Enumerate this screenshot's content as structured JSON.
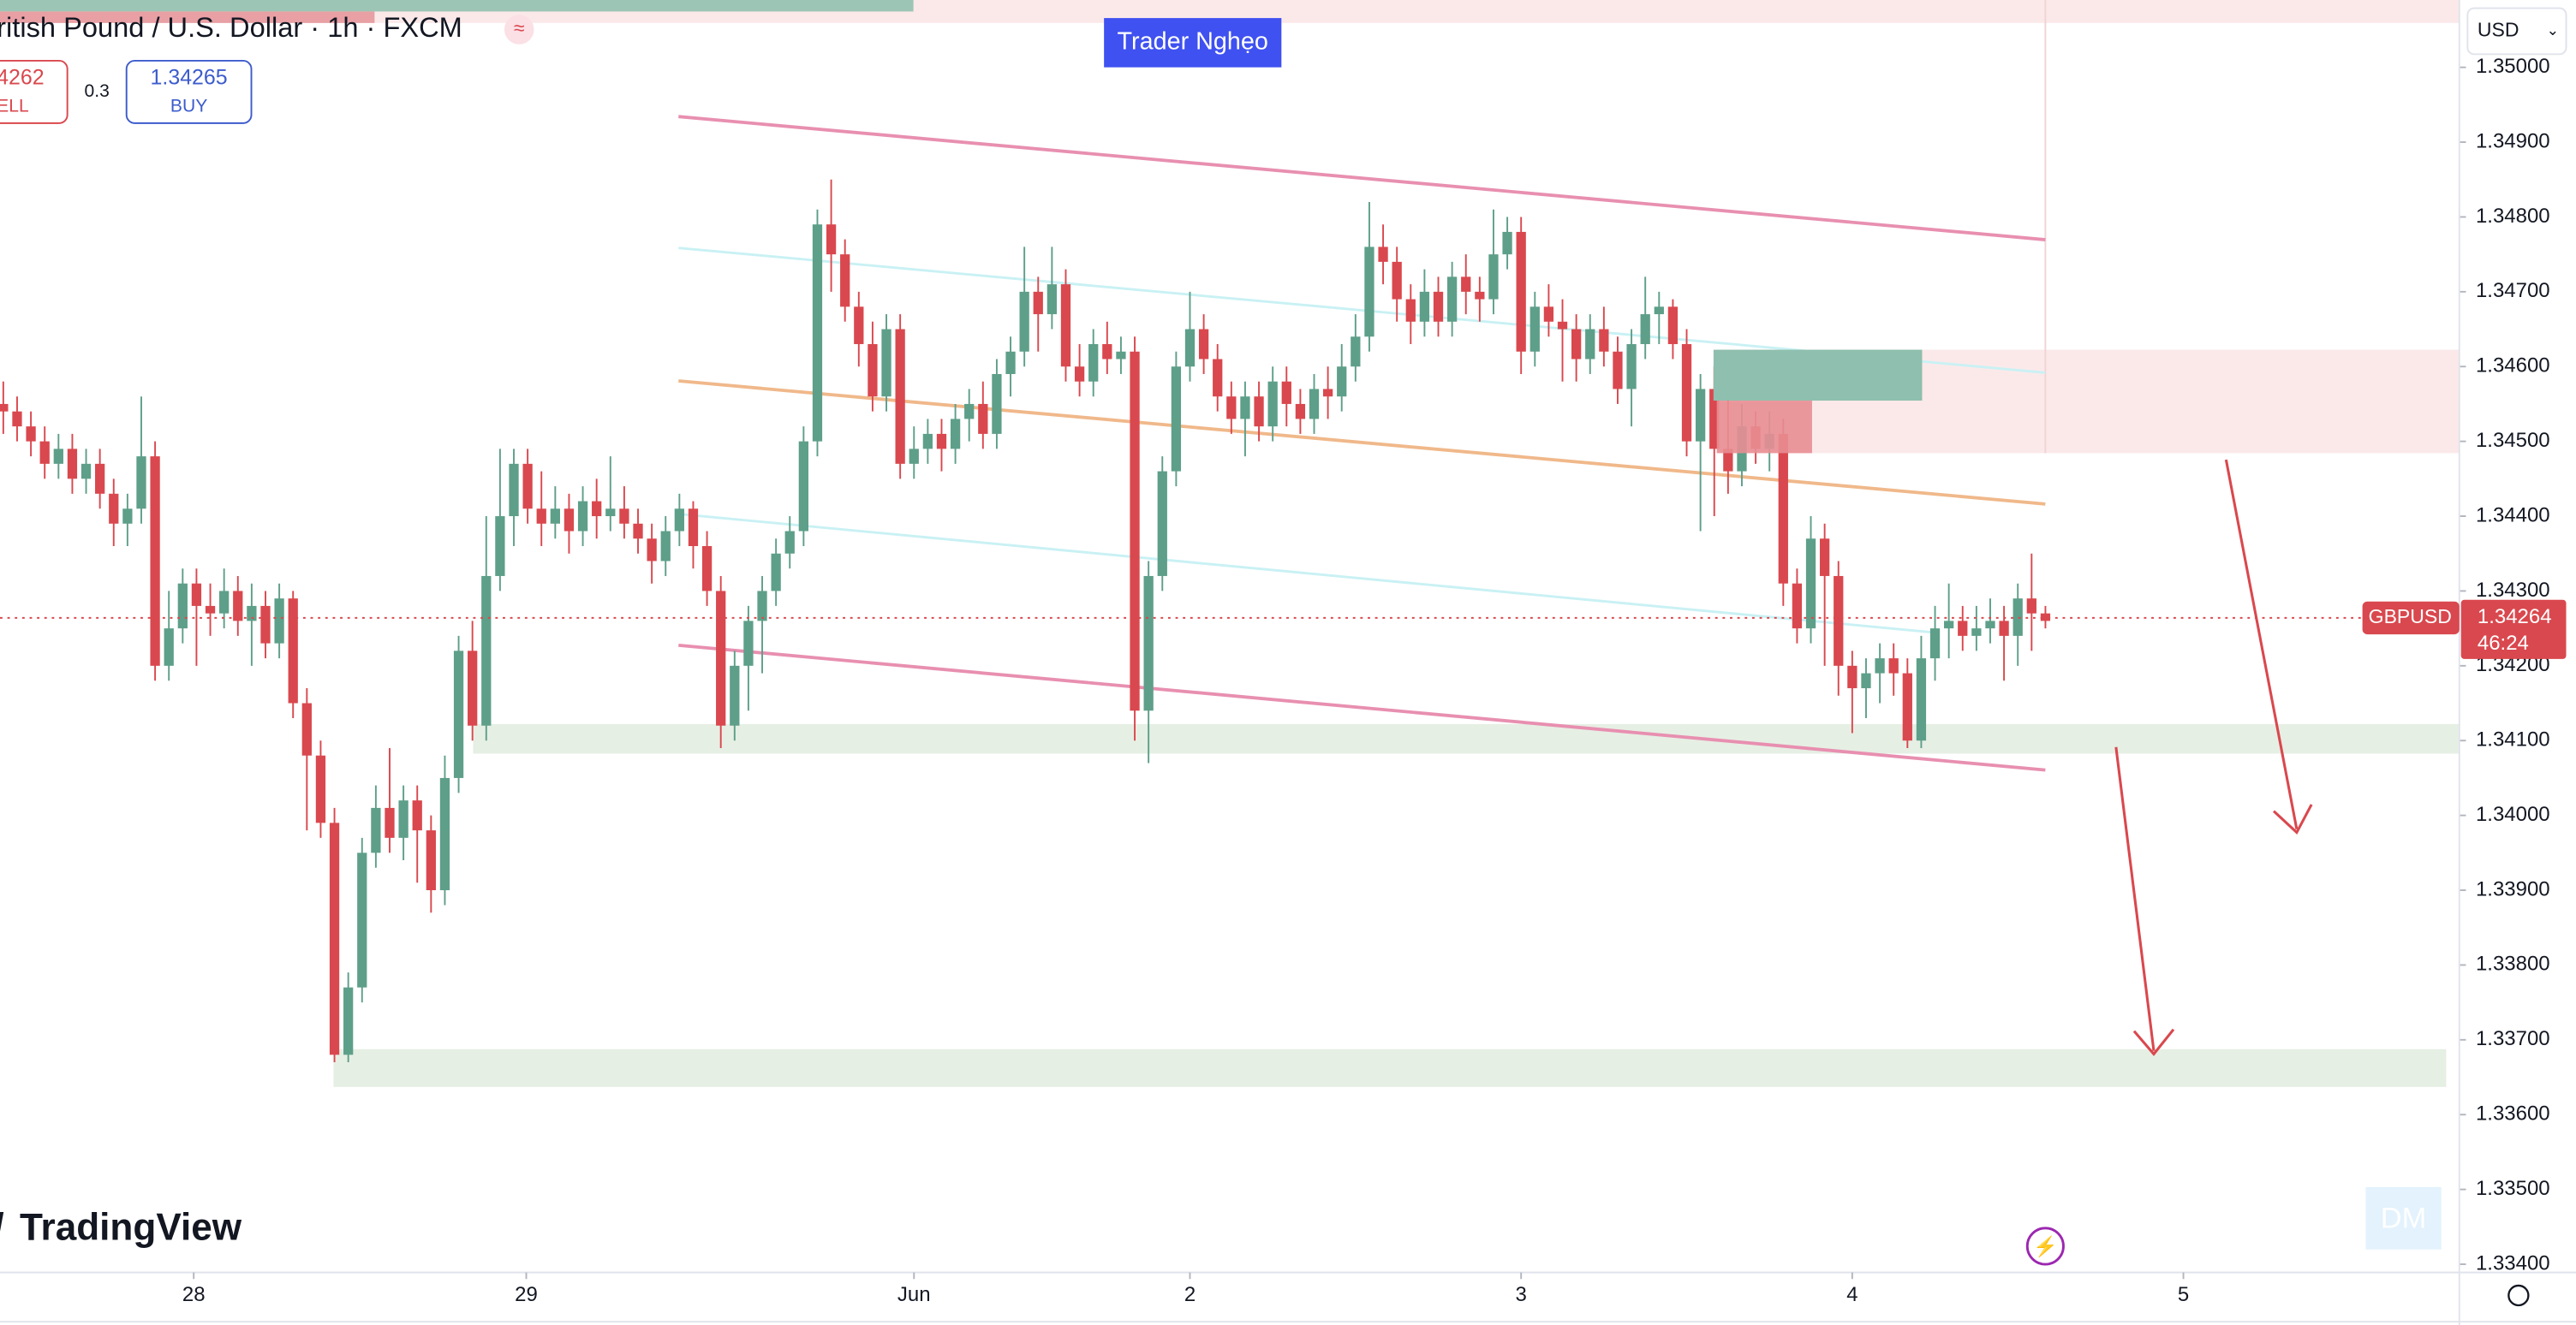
{
  "header": {
    "title": "ritish Pound / U.S. Dollar · 1h · FXCM",
    "sell_price": "4262",
    "sell_label": "ELL",
    "spread": "0.3",
    "buy_price": "1.34265",
    "buy_label": "BUY",
    "badge": "Trader Nghẹo",
    "currency": "USD",
    "logo": "TradingView"
  },
  "chart_data": {
    "type": "candlestick",
    "symbol": "GBPUSD",
    "up_color": "#5e9f89",
    "down_color": "#d9484e",
    "last_price": {
      "value": 1.34264,
      "label": "1.34264"
    },
    "countdown": "46:24",
    "ylim": [
      1.33389,
      1.3509
    ],
    "yticks": [
      {
        "value": 1.35,
        "label": "1.35000"
      },
      {
        "value": 1.349,
        "label": "1.34900"
      },
      {
        "value": 1.348,
        "label": "1.34800"
      },
      {
        "value": 1.347,
        "label": "1.34700"
      },
      {
        "value": 1.346,
        "label": "1.34600"
      },
      {
        "value": 1.345,
        "label": "1.34500"
      },
      {
        "value": 1.344,
        "label": "1.34400"
      },
      {
        "value": 1.343,
        "label": "1.34300"
      },
      {
        "value": 1.342,
        "label": "1.34200"
      },
      {
        "value": 1.341,
        "label": "1.34100"
      },
      {
        "value": 1.34,
        "label": "1.34000"
      },
      {
        "value": 1.339,
        "label": "1.33900"
      },
      {
        "value": 1.338,
        "label": "1.33800"
      },
      {
        "value": 1.337,
        "label": "1.33700"
      },
      {
        "value": 1.336,
        "label": "1.33600"
      },
      {
        "value": 1.335,
        "label": "1.33500"
      },
      {
        "value": 1.334,
        "label": "1.33400"
      }
    ],
    "xlim": [
      -0.24,
      178
    ],
    "xticks": [
      {
        "value": 13.8,
        "label": "28"
      },
      {
        "value": 37.9,
        "label": "29"
      },
      {
        "value": 66,
        "label": "Jun"
      },
      {
        "value": 86,
        "label": "2"
      },
      {
        "value": 110,
        "label": "3"
      },
      {
        "value": 134,
        "label": "4"
      },
      {
        "value": 158,
        "label": "5"
      }
    ],
    "close": [
      1.3454,
      1.3452,
      1.345,
      1.3447,
      1.3449,
      1.3445,
      1.3447,
      1.3443,
      1.3439,
      1.3441,
      1.3448,
      1.342,
      1.3425,
      1.3431,
      1.3428,
      1.3427,
      1.343,
      1.3426,
      1.3428,
      1.3423,
      1.3429,
      1.3415,
      1.3408,
      1.3399,
      1.3368,
      1.3377,
      1.3395,
      1.3401,
      1.3397,
      1.3402,
      1.3398,
      1.339,
      1.3405,
      1.3422,
      1.3412,
      1.3432,
      1.344,
      1.3447,
      1.3441,
      1.3439,
      1.3441,
      1.3438,
      1.3442,
      1.344,
      1.3441,
      1.3439,
      1.3437,
      1.3434,
      1.3438,
      1.3441,
      1.3436,
      1.343,
      1.3412,
      1.342,
      1.3426,
      1.343,
      1.3435,
      1.3438,
      1.345,
      1.3479,
      1.3475,
      1.3468,
      1.3463,
      1.3456,
      1.3465,
      1.3447,
      1.3449,
      1.3451,
      1.3449,
      1.3453,
      1.3455,
      1.3451,
      1.3459,
      1.3462,
      1.347,
      1.3467,
      1.3471,
      1.346,
      1.3458,
      1.3463,
      1.3461,
      1.3462,
      1.3414,
      1.3432,
      1.3446,
      1.346,
      1.3465,
      1.3461,
      1.3456,
      1.3453,
      1.3456,
      1.3452,
      1.3458,
      1.3455,
      1.3453,
      1.3457,
      1.3456,
      1.346,
      1.3464,
      1.3476,
      1.3474,
      1.3469,
      1.3466,
      1.347,
      1.3466,
      1.3472,
      1.347,
      1.3469,
      1.3475,
      1.3478,
      1.3462,
      1.3468,
      1.3466,
      1.3465,
      1.3461,
      1.3465,
      1.3462,
      1.3457,
      1.3463,
      1.3467,
      1.3468,
      1.3463,
      1.345,
      1.3457,
      1.3449,
      1.3446,
      1.3452,
      1.3449,
      1.3451,
      1.3431,
      1.3425,
      1.3437,
      1.3432,
      1.342,
      1.3417,
      1.3419,
      1.3421,
      1.3419,
      1.341,
      1.3421,
      1.3425,
      1.3426,
      1.3424,
      1.3425,
      1.3426,
      1.3424,
      1.3429,
      1.3427,
      1.3426
    ],
    "open": [
      1.3455,
      1.3454,
      1.3452,
      1.345,
      1.3447,
      1.3449,
      1.3445,
      1.3447,
      1.3443,
      1.3439,
      1.3441,
      1.3448,
      1.342,
      1.3425,
      1.3431,
      1.3428,
      1.3427,
      1.343,
      1.3426,
      1.3428,
      1.3423,
      1.3429,
      1.3415,
      1.3408,
      1.3399,
      1.3368,
      1.3377,
      1.3395,
      1.3401,
      1.3397,
      1.3402,
      1.3398,
      1.339,
      1.3405,
      1.3422,
      1.3412,
      1.3432,
      1.344,
      1.3447,
      1.3441,
      1.3439,
      1.3441,
      1.3438,
      1.3442,
      1.344,
      1.3441,
      1.3439,
      1.3437,
      1.3434,
      1.3438,
      1.3441,
      1.3436,
      1.343,
      1.3412,
      1.342,
      1.3426,
      1.343,
      1.3435,
      1.3438,
      1.345,
      1.3479,
      1.3475,
      1.3468,
      1.3463,
      1.3456,
      1.3465,
      1.3447,
      1.3449,
      1.3451,
      1.3449,
      1.3453,
      1.3455,
      1.3451,
      1.3459,
      1.3462,
      1.347,
      1.3467,
      1.3471,
      1.346,
      1.3458,
      1.3463,
      1.3461,
      1.3462,
      1.3414,
      1.3432,
      1.3446,
      1.346,
      1.3465,
      1.3461,
      1.3456,
      1.3453,
      1.3456,
      1.3452,
      1.3458,
      1.3455,
      1.3453,
      1.3457,
      1.3456,
      1.346,
      1.3464,
      1.3476,
      1.3474,
      1.3469,
      1.3466,
      1.347,
      1.3466,
      1.3472,
      1.347,
      1.3469,
      1.3475,
      1.3478,
      1.3462,
      1.3468,
      1.3466,
      1.3465,
      1.3461,
      1.3465,
      1.3462,
      1.3457,
      1.3463,
      1.3467,
      1.3468,
      1.3463,
      1.345,
      1.3457,
      1.3449,
      1.3446,
      1.3452,
      1.3449,
      1.3451,
      1.3431,
      1.3425,
      1.3437,
      1.3432,
      1.342,
      1.3417,
      1.3419,
      1.3421,
      1.3419,
      1.341,
      1.3421,
      1.3425,
      1.3426,
      1.3424,
      1.3425,
      1.3426,
      1.3424,
      1.3429,
      1.3427
    ],
    "high": [
      1.3458,
      1.3456,
      1.3454,
      1.3452,
      1.3451,
      1.3451,
      1.3449,
      1.3449,
      1.3445,
      1.3443,
      1.3456,
      1.345,
      1.343,
      1.3433,
      1.3433,
      1.3431,
      1.3433,
      1.3432,
      1.3431,
      1.343,
      1.3431,
      1.343,
      1.3417,
      1.341,
      1.3401,
      1.3379,
      1.3397,
      1.3404,
      1.3409,
      1.3404,
      1.3404,
      1.34,
      1.3408,
      1.3424,
      1.3426,
      1.344,
      1.3449,
      1.3449,
      1.3449,
      1.3446,
      1.3444,
      1.3443,
      1.3444,
      1.3445,
      1.3448,
      1.3444,
      1.3441,
      1.3439,
      1.344,
      1.3443,
      1.3442,
      1.3438,
      1.3432,
      1.3422,
      1.3428,
      1.3432,
      1.3437,
      1.344,
      1.3452,
      1.3481,
      1.3485,
      1.3477,
      1.347,
      1.3466,
      1.3467,
      1.3467,
      1.3452,
      1.3453,
      1.3453,
      1.3455,
      1.3457,
      1.3458,
      1.3461,
      1.3464,
      1.3476,
      1.3472,
      1.3476,
      1.3473,
      1.3463,
      1.3465,
      1.3466,
      1.3464,
      1.3464,
      1.3434,
      1.3448,
      1.3462,
      1.347,
      1.3467,
      1.3463,
      1.3458,
      1.3458,
      1.3458,
      1.346,
      1.346,
      1.3457,
      1.3459,
      1.346,
      1.3463,
      1.3467,
      1.3482,
      1.3479,
      1.3476,
      1.3471,
      1.3473,
      1.3472,
      1.3474,
      1.3475,
      1.3472,
      1.3481,
      1.348,
      1.348,
      1.347,
      1.3471,
      1.3469,
      1.3467,
      1.3467,
      1.3468,
      1.3464,
      1.3465,
      1.3472,
      1.347,
      1.3469,
      1.3465,
      1.3459,
      1.346,
      1.3461,
      1.3455,
      1.3454,
      1.3454,
      1.3453,
      1.3433,
      1.344,
      1.3439,
      1.3434,
      1.3422,
      1.3421,
      1.3423,
      1.3423,
      1.3421,
      1.3424,
      1.3428,
      1.3431,
      1.3428,
      1.3428,
      1.3429,
      1.3428,
      1.3431,
      1.3435,
      1.3428
    ],
    "low": [
      1.3451,
      1.345,
      1.3448,
      1.3445,
      1.3445,
      1.3443,
      1.3443,
      1.3441,
      1.3436,
      1.3436,
      1.3439,
      1.3418,
      1.3418,
      1.3423,
      1.342,
      1.3424,
      1.3425,
      1.3424,
      1.342,
      1.3421,
      1.3421,
      1.3413,
      1.3398,
      1.3397,
      1.3367,
      1.3367,
      1.3375,
      1.3393,
      1.3395,
      1.3394,
      1.3391,
      1.3387,
      1.3388,
      1.3403,
      1.341,
      1.341,
      1.343,
      1.3436,
      1.3439,
      1.3436,
      1.3437,
      1.3435,
      1.3436,
      1.3437,
      1.3438,
      1.3437,
      1.3435,
      1.3431,
      1.3432,
      1.3436,
      1.3433,
      1.3428,
      1.3409,
      1.341,
      1.3414,
      1.3419,
      1.3428,
      1.3433,
      1.3436,
      1.3448,
      1.347,
      1.3466,
      1.346,
      1.3454,
      1.3454,
      1.3445,
      1.3445,
      1.3447,
      1.3446,
      1.3447,
      1.345,
      1.3449,
      1.3449,
      1.3456,
      1.346,
      1.3462,
      1.3465,
      1.3458,
      1.3456,
      1.3456,
      1.3459,
      1.3459,
      1.341,
      1.3407,
      1.343,
      1.3444,
      1.3458,
      1.3459,
      1.3454,
      1.3451,
      1.3448,
      1.345,
      1.345,
      1.3452,
      1.3451,
      1.3451,
      1.3453,
      1.3454,
      1.3458,
      1.3462,
      1.3471,
      1.3466,
      1.3463,
      1.3464,
      1.3464,
      1.3464,
      1.3467,
      1.3466,
      1.3467,
      1.3473,
      1.3459,
      1.346,
      1.3464,
      1.3458,
      1.3458,
      1.3459,
      1.346,
      1.3455,
      1.3452,
      1.3461,
      1.3463,
      1.3461,
      1.3448,
      1.3438,
      1.344,
      1.3443,
      1.3444,
      1.3447,
      1.3446,
      1.3428,
      1.3423,
      1.3423,
      1.342,
      1.3416,
      1.3411,
      1.3413,
      1.3415,
      1.3416,
      1.3409,
      1.3409,
      1.3418,
      1.3421,
      1.3422,
      1.3422,
      1.3423,
      1.3418,
      1.342,
      1.3422,
      1.3425
    ]
  }
}
